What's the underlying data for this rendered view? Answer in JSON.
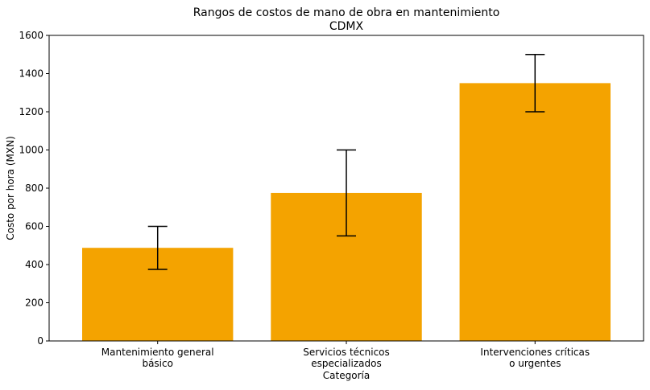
{
  "chart_data": {
    "type": "bar",
    "title": "Rangos de costos de mano de obra en mantenimiento",
    "subtitle": "CDMX",
    "xlabel": "Categoría",
    "ylabel": "Costo por hora (MXN)",
    "categories": [
      [
        "Mantenimiento general",
        "básico"
      ],
      [
        "Servicios técnicos",
        "especializados"
      ],
      [
        "Intervenciones críticas",
        "o urgentes"
      ]
    ],
    "values": [
      487.5,
      775,
      1350
    ],
    "error_low": [
      375,
      550,
      1200
    ],
    "error_high": [
      600,
      1000,
      1500
    ],
    "ylim": [
      0,
      1600
    ],
    "yticks": [
      0,
      200,
      400,
      600,
      800,
      1000,
      1200,
      1400,
      1600
    ],
    "grid": false,
    "bar_color": "#F4A300"
  }
}
